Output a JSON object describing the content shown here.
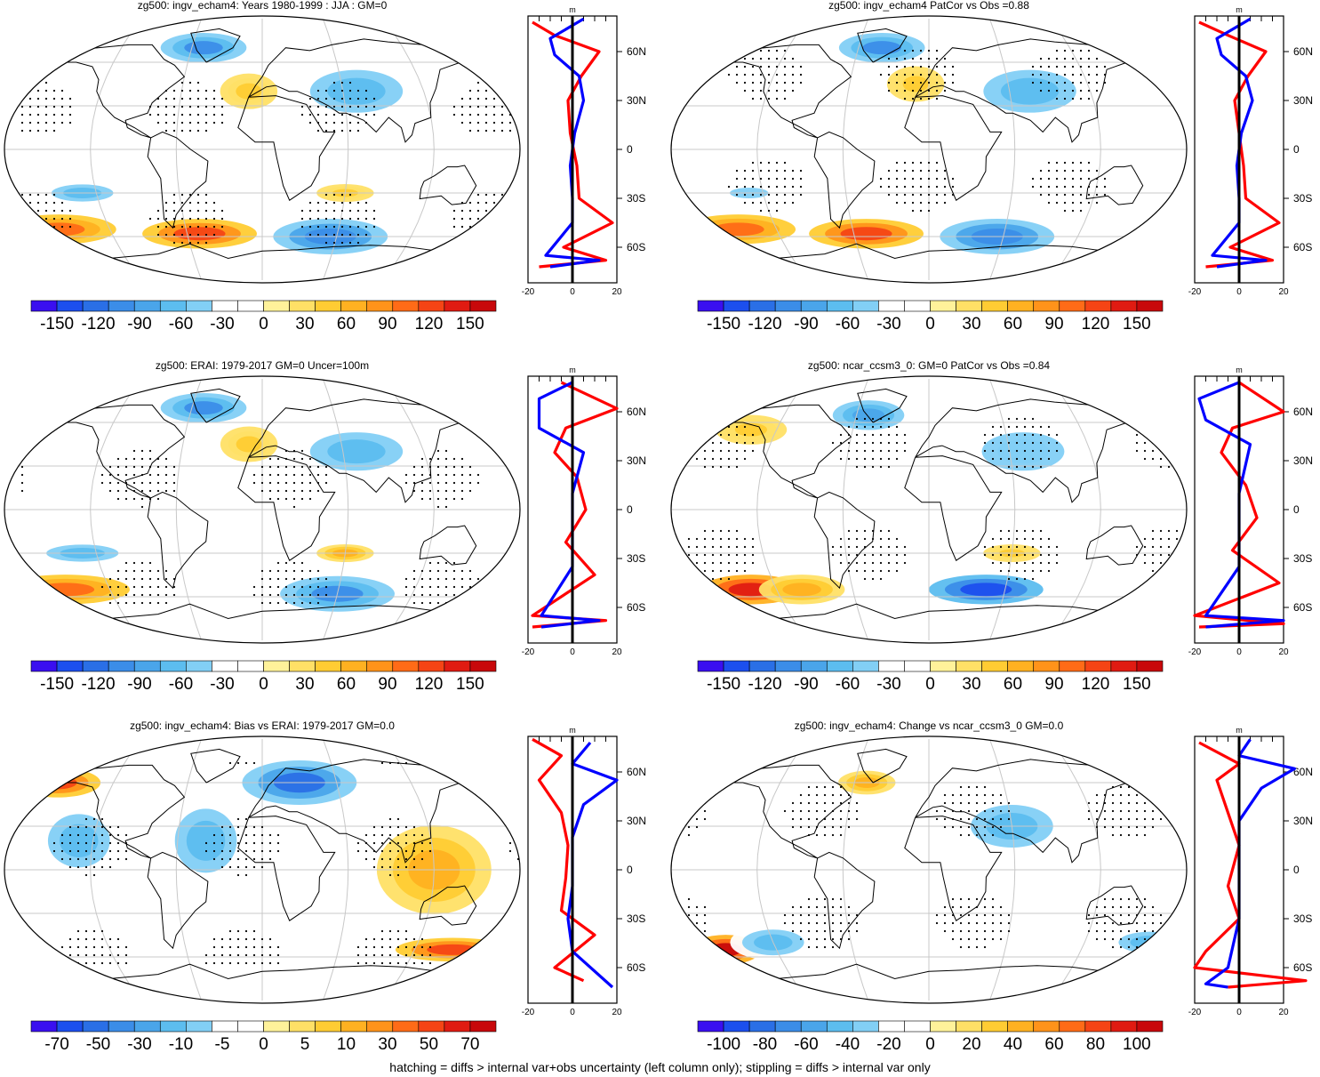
{
  "palette": [
    "#3a0ff0",
    "#1c4fee",
    "#2a6fe6",
    "#3b8de8",
    "#4aa5ea",
    "#5cbdef",
    "#82cff5",
    "#ffffff",
    "#ffffff",
    "#fff29a",
    "#ffe066",
    "#ffcc33",
    "#ffb121",
    "#ff931a",
    "#ff6b17",
    "#f54415",
    "#e01b12",
    "#c8080b"
  ],
  "line_colors": {
    "left_profile": "#ff0000",
    "right_profile": "#0000ff",
    "zero": "#000000",
    "grid": "#c8c8c8",
    "coast": "#000000"
  },
  "footnote": "hatching = diffs > internal var+obs uncertainty (left column only); stippling = diffs > internal var only",
  "profile_axis": {
    "unit": "m",
    "lat_ticks": [
      "60N",
      "30N",
      "0",
      "30S",
      "60S"
    ]
  },
  "panels": [
    {
      "id": "p1",
      "title": "zg500: ingv_echam4: Years 1980-1999 : JJA : GM=0",
      "colorbar": [
        "-150",
        "-120",
        "-90",
        "-60",
        "-30",
        "0",
        "30",
        "60",
        "90",
        "120",
        "150"
      ],
      "profile_x_ticks": [
        "-20",
        "0",
        "20"
      ]
    },
    {
      "id": "p2",
      "title": "zg500: ingv_echam4 PatCor vs Obs =0.88",
      "colorbar": [
        "-150",
        "-120",
        "-90",
        "-60",
        "-30",
        "0",
        "30",
        "60",
        "90",
        "120",
        "150"
      ],
      "profile_x_ticks": [
        "-20",
        "0",
        "20"
      ]
    },
    {
      "id": "p3",
      "title": "zg500: ERAI: 1979-2017 GM=0 Uncer=100m",
      "colorbar": [
        "-150",
        "-120",
        "-90",
        "-60",
        "-30",
        "0",
        "30",
        "60",
        "90",
        "120",
        "150"
      ],
      "profile_x_ticks": [
        "-20",
        "0",
        "20"
      ]
    },
    {
      "id": "p4",
      "title": "zg500: ncar_ccsm3_0: GM=0 PatCor vs Obs =0.84",
      "colorbar": [
        "-150",
        "-120",
        "-90",
        "-60",
        "-30",
        "0",
        "30",
        "60",
        "90",
        "120",
        "150"
      ],
      "profile_x_ticks": [
        "-20",
        "0",
        "20"
      ]
    },
    {
      "id": "p5",
      "title": "zg500: ingv_echam4: Bias vs ERAI: 1979-2017 GM=0.0",
      "colorbar": [
        "-70",
        "-50",
        "-30",
        "-10",
        "-5",
        "0",
        "5",
        "10",
        "30",
        "50",
        "70"
      ],
      "profile_x_ticks": [
        "-20",
        "0",
        "20"
      ]
    },
    {
      "id": "p6",
      "title": "zg500: ingv_echam4: Change vs ncar_ccsm3_0 GM=0.0",
      "colorbar": [
        "-100",
        "-80",
        "-60",
        "-40",
        "-20",
        "0",
        "20",
        "40",
        "60",
        "80",
        "100"
      ],
      "profile_x_ticks": [
        "-20",
        "0",
        "20"
      ]
    }
  ],
  "chart_data": [
    {
      "type": "heatmap",
      "title": "zg500: ingv_echam4: Years 1980-1999 : JJA : GM=0",
      "colorbar_ticks": [
        -150,
        -120,
        -90,
        -60,
        -30,
        0,
        30,
        60,
        90,
        120,
        150
      ],
      "features": [
        {
          "lon": 70,
          "lat": 40,
          "v": -60,
          "rlon": 45,
          "rlat": 20
        },
        {
          "lon": 55,
          "lat": -60,
          "v": -100,
          "rlon": 40,
          "rlat": 12
        },
        {
          "lon": -160,
          "lat": -55,
          "v": 90,
          "rlon": 40,
          "rlat": 10
        },
        {
          "lon": -50,
          "lat": -58,
          "v": 110,
          "rlon": 40,
          "rlat": 10
        },
        {
          "lon": -130,
          "lat": -30,
          "v": -60,
          "rlon": 30,
          "rlat": 8
        },
        {
          "lon": -50,
          "lat": 70,
          "v": -90,
          "rlon": 30,
          "rlat": 10
        },
        {
          "lon": -10,
          "lat": 40,
          "v": 40,
          "rlon": 20,
          "rlat": 12
        },
        {
          "lon": 60,
          "lat": -30,
          "v": 40,
          "rlon": 20,
          "rlat": 6
        }
      ],
      "profile_left": [
        [
          -18,
          78
        ],
        [
          -8,
          70
        ],
        [
          12,
          60
        ],
        [
          4,
          45
        ],
        [
          -2,
          30
        ],
        [
          -1,
          10
        ],
        [
          2,
          -10
        ],
        [
          3,
          -30
        ],
        [
          18,
          -45
        ],
        [
          -4,
          -60
        ],
        [
          15,
          -68
        ],
        [
          -15,
          -72
        ]
      ],
      "profile_right": [
        [
          5,
          80
        ],
        [
          -10,
          68
        ],
        [
          -8,
          58
        ],
        [
          3,
          45
        ],
        [
          5,
          30
        ],
        [
          1,
          10
        ],
        [
          -1,
          -10
        ],
        [
          0,
          -30
        ],
        [
          0,
          -45
        ],
        [
          -12,
          -65
        ],
        [
          12,
          -68
        ],
        [
          -10,
          -72
        ]
      ]
    },
    {
      "type": "heatmap",
      "title": "zg500: ingv_echam4 PatCor vs Obs =0.88",
      "colorbar_ticks": [
        -150,
        -120,
        -90,
        -60,
        -30,
        0,
        30,
        60,
        90,
        120,
        150
      ],
      "features": [
        {
          "lon": 75,
          "lat": 40,
          "v": -60,
          "rlon": 45,
          "rlat": 20
        },
        {
          "lon": 55,
          "lat": -60,
          "v": -100,
          "rlon": 40,
          "rlat": 12
        },
        {
          "lon": -150,
          "lat": -55,
          "v": 90,
          "rlon": 40,
          "rlat": 10
        },
        {
          "lon": -50,
          "lat": -58,
          "v": 110,
          "rlon": 40,
          "rlat": 10
        },
        {
          "lon": -40,
          "lat": 70,
          "v": -90,
          "rlon": 30,
          "rlat": 10
        },
        {
          "lon": -10,
          "lat": 45,
          "v": 40,
          "rlon": 20,
          "rlat": 12
        },
        {
          "lon": -130,
          "lat": -30,
          "v": -40,
          "rlon": 30,
          "rlat": 8
        }
      ],
      "profile_left": [
        [
          -18,
          78
        ],
        [
          -5,
          70
        ],
        [
          12,
          60
        ],
        [
          4,
          45
        ],
        [
          -2,
          30
        ],
        [
          0,
          10
        ],
        [
          2,
          -10
        ],
        [
          3,
          -30
        ],
        [
          18,
          -45
        ],
        [
          -4,
          -60
        ],
        [
          15,
          -68
        ],
        [
          -15,
          -72
        ]
      ],
      "profile_right": [
        [
          5,
          80
        ],
        [
          -10,
          68
        ],
        [
          -8,
          58
        ],
        [
          3,
          45
        ],
        [
          6,
          30
        ],
        [
          1,
          10
        ],
        [
          -1,
          -10
        ],
        [
          0,
          -30
        ],
        [
          0,
          -45
        ],
        [
          -12,
          -65
        ],
        [
          12,
          -68
        ],
        [
          -10,
          -72
        ]
      ]
    },
    {
      "type": "heatmap",
      "title": "zg500: ERAI: 1979-2017 GM=0 Uncer=100m",
      "colorbar_ticks": [
        -150,
        -120,
        -90,
        -60,
        -30,
        0,
        30,
        60,
        90,
        120,
        150
      ],
      "features": [
        {
          "lon": 70,
          "lat": 40,
          "v": -60,
          "rlon": 45,
          "rlat": 18
        },
        {
          "lon": 60,
          "lat": -58,
          "v": -90,
          "rlon": 40,
          "rlat": 12
        },
        {
          "lon": -155,
          "lat": -55,
          "v": 90,
          "rlon": 45,
          "rlat": 10
        },
        {
          "lon": -130,
          "lat": -30,
          "v": -60,
          "rlon": 35,
          "rlat": 8
        },
        {
          "lon": -50,
          "lat": 70,
          "v": -90,
          "rlon": 30,
          "rlat": 10
        },
        {
          "lon": -10,
          "lat": 45,
          "v": 40,
          "rlon": 20,
          "rlat": 12
        },
        {
          "lon": 60,
          "lat": -30,
          "v": 50,
          "rlon": 20,
          "rlat": 6
        }
      ],
      "profile_left": [
        [
          -5,
          78
        ],
        [
          20,
          62
        ],
        [
          -3,
          50
        ],
        [
          -8,
          35
        ],
        [
          2,
          20
        ],
        [
          6,
          0
        ],
        [
          -3,
          -20
        ],
        [
          10,
          -40
        ],
        [
          -18,
          -65
        ],
        [
          15,
          -68
        ],
        [
          -18,
          -72
        ]
      ],
      "profile_right": [
        [
          0,
          78
        ],
        [
          -15,
          68
        ],
        [
          -15,
          50
        ],
        [
          5,
          35
        ],
        [
          0,
          10
        ],
        [
          0,
          -10
        ],
        [
          0,
          -35
        ],
        [
          -14,
          -65
        ],
        [
          12,
          -68
        ],
        [
          -14,
          -72
        ]
      ]
    },
    {
      "type": "heatmap",
      "title": "zg500: ncar_ccsm3_0: GM=0 PatCor vs Obs =0.84",
      "colorbar_ticks": [
        -150,
        -120,
        -90,
        -60,
        -30,
        0,
        30,
        60,
        90,
        120,
        150
      ],
      "features": [
        {
          "lon": 70,
          "lat": 40,
          "v": -50,
          "rlon": 40,
          "rlat": 18
        },
        {
          "lon": 45,
          "lat": -55,
          "v": -120,
          "rlon": 40,
          "rlat": 10
        },
        {
          "lon": -140,
          "lat": -55,
          "v": 120,
          "rlon": 35,
          "rlat": 10
        },
        {
          "lon": -100,
          "lat": -55,
          "v": 60,
          "rlon": 30,
          "rlat": 10
        },
        {
          "lon": -50,
          "lat": 65,
          "v": -80,
          "rlon": 25,
          "rlat": 10
        },
        {
          "lon": -140,
          "lat": 55,
          "v": 40,
          "rlon": 25,
          "rlat": 10
        },
        {
          "lon": 60,
          "lat": -30,
          "v": 40,
          "rlon": 20,
          "rlat": 6
        }
      ],
      "profile_left": [
        [
          0,
          78
        ],
        [
          20,
          60
        ],
        [
          -3,
          50
        ],
        [
          -8,
          35
        ],
        [
          3,
          15
        ],
        [
          8,
          -5
        ],
        [
          -3,
          -25
        ],
        [
          18,
          -45
        ],
        [
          -20,
          -65
        ],
        [
          20,
          -70
        ],
        [
          -18,
          -72
        ]
      ],
      "profile_right": [
        [
          0,
          78
        ],
        [
          -18,
          68
        ],
        [
          -15,
          55
        ],
        [
          5,
          40
        ],
        [
          0,
          10
        ],
        [
          0,
          -10
        ],
        [
          0,
          -35
        ],
        [
          -15,
          -65
        ],
        [
          20,
          -68
        ],
        [
          -15,
          -72
        ]
      ]
    },
    {
      "type": "heatmap",
      "title": "zg500: ingv_echam4: Bias vs ERAI: 1979-2017 GM=0.0",
      "colorbar_ticks": [
        -70,
        -50,
        -30,
        -10,
        -5,
        0,
        5,
        10,
        30,
        50,
        70
      ],
      "features": [
        {
          "lon": -165,
          "lat": 60,
          "v": 50,
          "rlon": 30,
          "rlat": 10
        },
        {
          "lon": 120,
          "lat": 0,
          "v": 30,
          "rlon": 40,
          "rlat": 30
        },
        {
          "lon": -40,
          "lat": 20,
          "v": -30,
          "rlon": 30,
          "rlat": 30
        },
        {
          "lon": -130,
          "lat": 20,
          "v": -30,
          "rlon": 30,
          "rlat": 25
        },
        {
          "lon": 30,
          "lat": 60,
          "v": -50,
          "rlon": 40,
          "rlat": 15
        },
        {
          "lon": 150,
          "lat": -55,
          "v": 50,
          "rlon": 40,
          "rlat": 8
        }
      ],
      "profile_left": [
        [
          -18,
          80
        ],
        [
          -5,
          70
        ],
        [
          -15,
          55
        ],
        [
          -5,
          35
        ],
        [
          -2,
          15
        ],
        [
          -3,
          -5
        ],
        [
          -5,
          -25
        ],
        [
          10,
          -40
        ],
        [
          -8,
          -60
        ],
        [
          5,
          -68
        ]
      ],
      "profile_right": [
        [
          8,
          78
        ],
        [
          0,
          65
        ],
        [
          20,
          55
        ],
        [
          5,
          40
        ],
        [
          0,
          20
        ],
        [
          0,
          -10
        ],
        [
          -2,
          -30
        ],
        [
          0,
          -50
        ],
        [
          18,
          -72
        ]
      ]
    },
    {
      "type": "heatmap",
      "title": "zg500: ingv_echam4: Change vs ncar_ccsm3_0 GM=0.0",
      "colorbar_ticks": [
        -100,
        -80,
        -60,
        -40,
        -20,
        0,
        20,
        40,
        60,
        80,
        100
      ],
      "features": [
        {
          "lon": -160,
          "lat": -55,
          "v": 90,
          "rlon": 25,
          "rlat": 10
        },
        {
          "lon": 170,
          "lat": -50,
          "v": -40,
          "rlon": 30,
          "rlat": 10
        },
        {
          "lon": -120,
          "lat": -50,
          "v": -40,
          "rlon": 30,
          "rlat": 12
        },
        {
          "lon": -50,
          "lat": 60,
          "v": 40,
          "rlon": 20,
          "rlat": 8
        },
        {
          "lon": 60,
          "lat": 30,
          "v": -40,
          "rlon": 40,
          "rlat": 20
        }
      ],
      "profile_left": [
        [
          -18,
          78
        ],
        [
          0,
          65
        ],
        [
          -10,
          55
        ],
        [
          -5,
          35
        ],
        [
          0,
          15
        ],
        [
          -5,
          -10
        ],
        [
          0,
          -30
        ],
        [
          -15,
          -50
        ],
        [
          -20,
          -60
        ],
        [
          30,
          -68
        ],
        [
          -5,
          -72
        ]
      ],
      "profile_right": [
        [
          5,
          80
        ],
        [
          0,
          70
        ],
        [
          25,
          62
        ],
        [
          10,
          50
        ],
        [
          0,
          30
        ],
        [
          0,
          0
        ],
        [
          0,
          -30
        ],
        [
          -5,
          -60
        ],
        [
          -15,
          -70
        ],
        [
          -5,
          -72
        ]
      ]
    }
  ]
}
